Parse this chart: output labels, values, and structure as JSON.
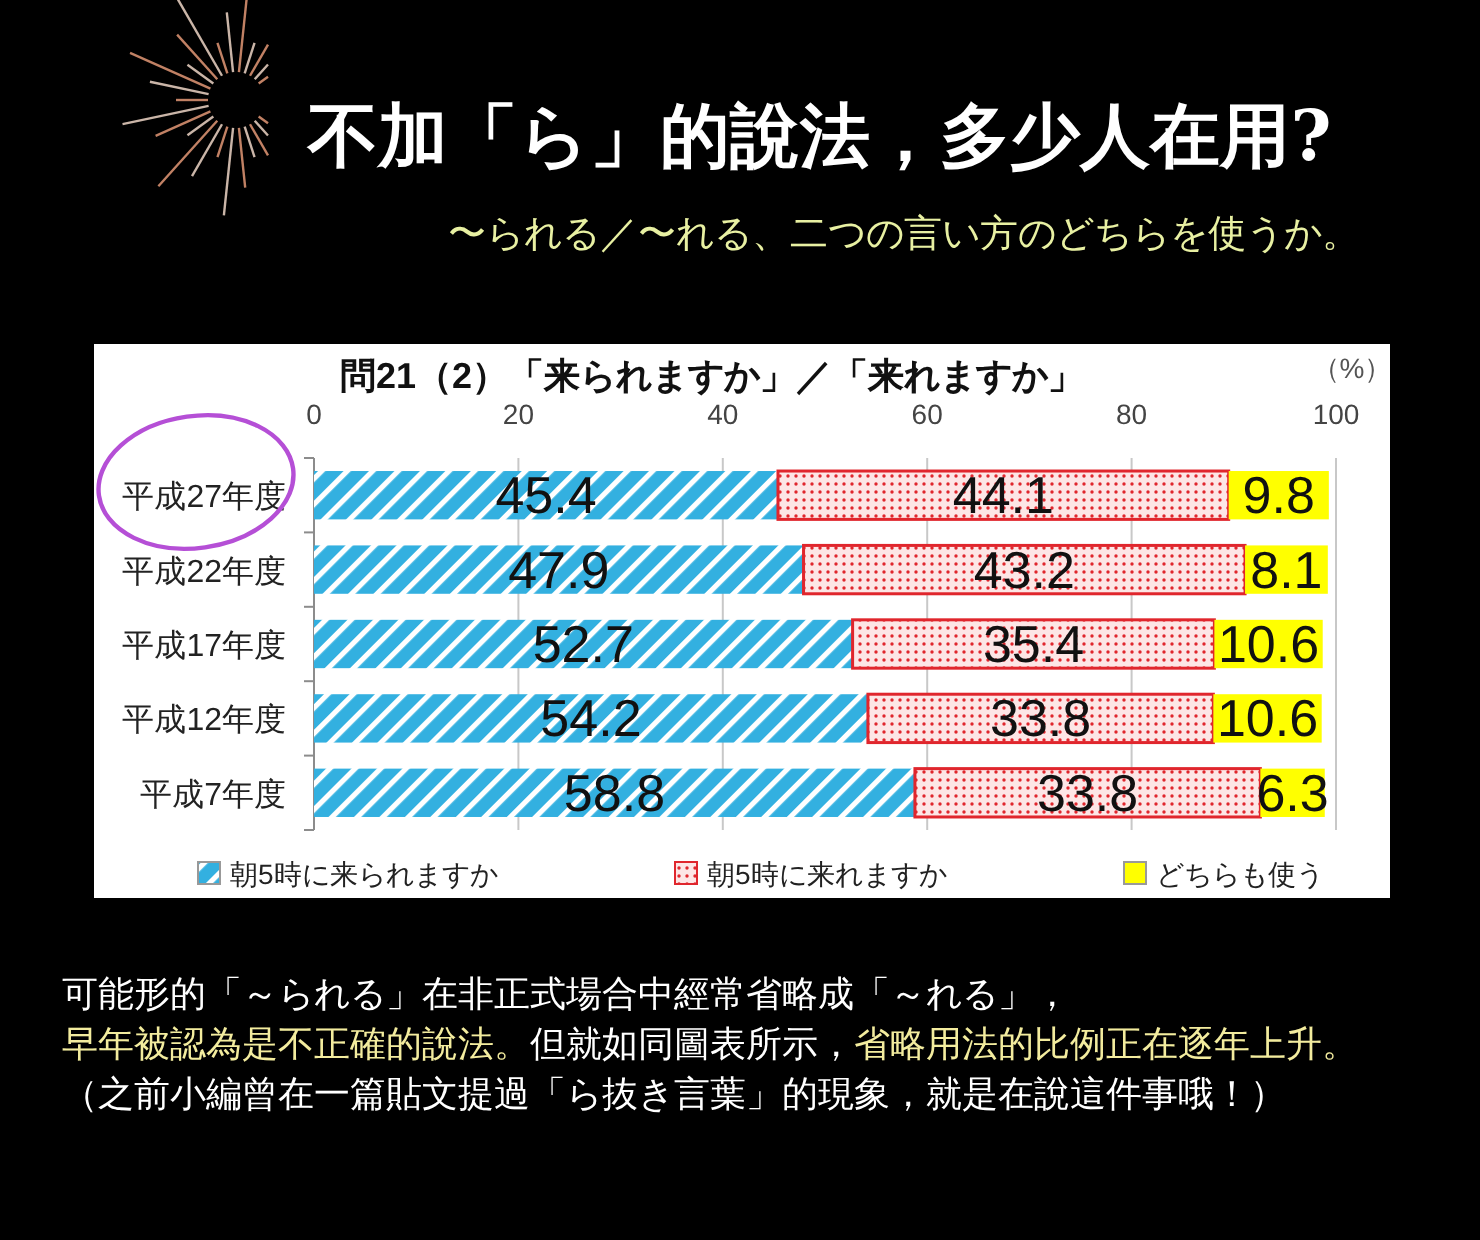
{
  "chart_data": {
    "type": "bar",
    "orientation": "horizontal",
    "stacked": true,
    "title": "不加「ら」的說法，多少人在用?",
    "subtitle": "〜られる／〜れる、二つの言い方のどちらを使うか。",
    "xlabel": "（%）",
    "categories": [
      "平成27年度",
      "平成22年度",
      "平成17年度",
      "平成12年度",
      "平成7年度"
    ],
    "series": [
      {
        "name": "朝5時に来られますか",
        "color": "#33b0e0",
        "values": [
          45.4,
          47.9,
          52.7,
          54.2,
          58.8
        ]
      },
      {
        "name": "朝5時に来れますか",
        "color": "#e0262d",
        "values": [
          44.1,
          43.2,
          35.4,
          33.8,
          33.8
        ]
      },
      {
        "name": "どちらも使う",
        "color": "#ffff00",
        "values": [
          9.8,
          8.1,
          10.6,
          10.6,
          6.3
        ]
      }
    ],
    "xlim": [
      0,
      100
    ],
    "xticks": [
      0,
      20,
      40,
      60,
      80,
      100
    ],
    "grid": "x",
    "legend": "bottom",
    "data_labels": true,
    "annotations": [
      "問21（2）「来られますか」／「来れますか」",
      "可能形的「～られる」在非正式場合中經常省略成「～れる」，",
      "早年被認為是不正確的說法。",
      "但就如同圖表所示，",
      "省略用法的比例正在逐年上升。",
      "（之前小編曾在一篇貼文提過「ら抜き言葉」的現象，就是在說這件事哦！）"
    ]
  }
}
